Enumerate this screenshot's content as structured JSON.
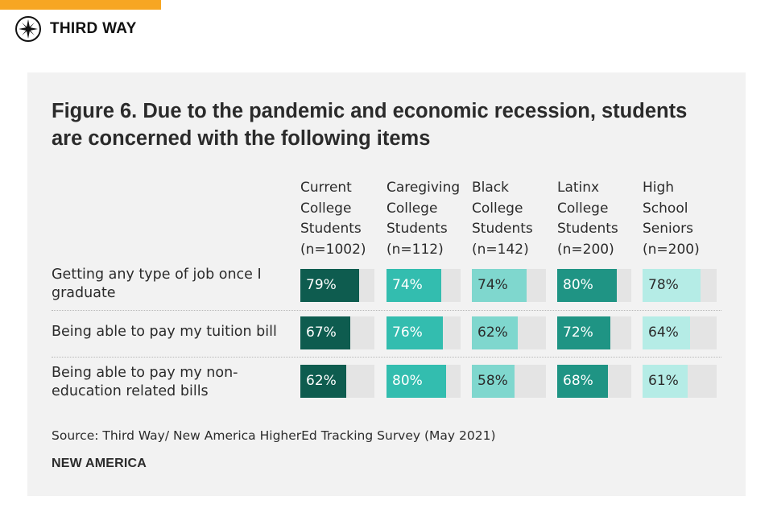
{
  "brand": {
    "name": "THIRD WAY",
    "logo_icon": "compass-star-icon",
    "accent": "#f7a623"
  },
  "chart_data": {
    "type": "table",
    "title": "Figure 6. Due to the pandemic and economic recession, students are concerned with the following items",
    "columns": [
      {
        "label": "Current\nCollege\nStudents\n(n=1002)",
        "color": "#0e5c4f",
        "text_color": "#ffffff"
      },
      {
        "label": "Caregiving\nCollege\nStudents\n(n=112)",
        "color": "#33bdaf",
        "text_color": "#ffffff"
      },
      {
        "label": "Black\nCollege\nStudents\n(n=142)",
        "color": "#7fd7ce",
        "text_color": "#2b2b2b"
      },
      {
        "label": "Latinx\nCollege\nStudents\n(n=200)",
        "color": "#1f9484",
        "text_color": "#ffffff"
      },
      {
        "label": "High\nSchool\nSeniors\n(n=200)",
        "color": "#b5ece6",
        "text_color": "#2b2b2b"
      }
    ],
    "rows": [
      {
        "label": "Getting any type of job once I graduate",
        "values": [
          79,
          74,
          74,
          80,
          78
        ]
      },
      {
        "label": "Being able to pay my tuition bill",
        "values": [
          67,
          76,
          62,
          72,
          64
        ]
      },
      {
        "label": "Being able to pay my non-education related bills",
        "values": [
          62,
          80,
          58,
          68,
          61
        ]
      }
    ],
    "value_suffix": "%",
    "scale_max": 100
  },
  "source": "Source: Third Way/ New America HigherEd Tracking Survey (May 2021)",
  "org": "NEW AMERICA"
}
